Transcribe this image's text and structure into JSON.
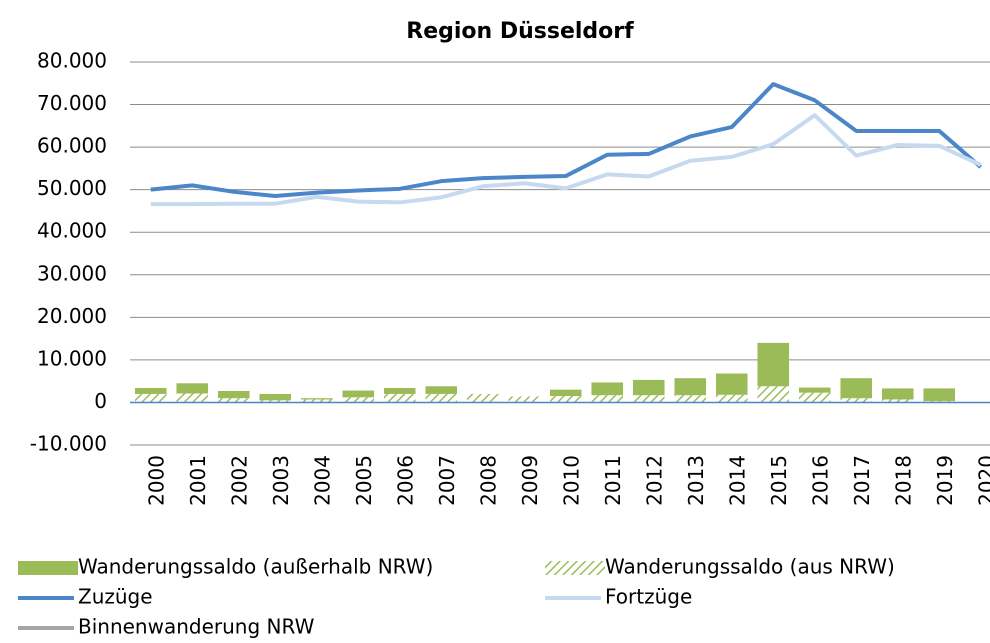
{
  "chart_data": {
    "type": "bar-line",
    "title": "Region Düsseldorf",
    "categories": [
      "2000",
      "2001",
      "2002",
      "2003",
      "2004",
      "2005",
      "2006",
      "2007",
      "2008",
      "2009",
      "2010",
      "2011",
      "2012",
      "2013",
      "2014",
      "2015",
      "2016",
      "2017",
      "2018",
      "2019",
      "2020"
    ],
    "series": [
      {
        "name": "Wanderungssaldo (aus NRW)",
        "type": "bar",
        "color": "#9bbb59",
        "hatch": true,
        "values": [
          2000,
          2100,
          1000,
          500,
          700,
          1200,
          2000,
          2000,
          2000,
          1400,
          1500,
          1700,
          1700,
          1700,
          1800,
          3800,
          2300,
          1000,
          700,
          300,
          0
        ]
      },
      {
        "name": "Wanderungssaldo (außerhalb NRW)",
        "type": "bar",
        "color": "#9bbb59",
        "values": [
          1400,
          2400,
          1700,
          1500,
          300,
          1600,
          1400,
          1800,
          0,
          0,
          1500,
          3000,
          3600,
          4000,
          5000,
          10200,
          1200,
          4700,
          2600,
          3000,
          0
        ]
      },
      {
        "name": "Zuzüge",
        "type": "line",
        "color": "#4a86c8",
        "values": [
          50000,
          51000,
          49500,
          48500,
          49300,
          49800,
          50200,
          52000,
          52700,
          53000,
          53200,
          58200,
          58400,
          62500,
          64700,
          74800,
          71000,
          63800,
          63800,
          63800,
          55300
        ]
      },
      {
        "name": "Fortzüge",
        "type": "line",
        "color": "#c6d9f0",
        "values": [
          46600,
          46600,
          46700,
          46700,
          48300,
          47200,
          47000,
          48200,
          50800,
          51500,
          50300,
          53600,
          53100,
          56800,
          57700,
          60700,
          67500,
          58000,
          60500,
          60300,
          55800
        ]
      },
      {
        "name": "Binnenwanderung NRW",
        "type": "line",
        "color": "#a6a6a6",
        "values": [
          null,
          null,
          null,
          null,
          null,
          null,
          null,
          null,
          null,
          null,
          null,
          null,
          null,
          null,
          null,
          null,
          null,
          null,
          null,
          null,
          null
        ]
      }
    ],
    "ylim": [
      -10000,
      80000
    ],
    "yticks": [
      {
        "value": -10000,
        "label": "-10.000"
      },
      0,
      {
        "value": 10000,
        "label": "10.000"
      },
      {
        "value": 20000,
        "label": "20.000"
      },
      {
        "value": 30000,
        "label": "30.000"
      },
      {
        "value": 40000,
        "label": "40.000"
      },
      {
        "value": 50000,
        "label": "50.000"
      },
      {
        "value": 60000,
        "label": "60.000"
      },
      {
        "value": 70000,
        "label": "70.000"
      },
      {
        "value": 80000,
        "label": "80.000"
      }
    ],
    "grid": true
  }
}
